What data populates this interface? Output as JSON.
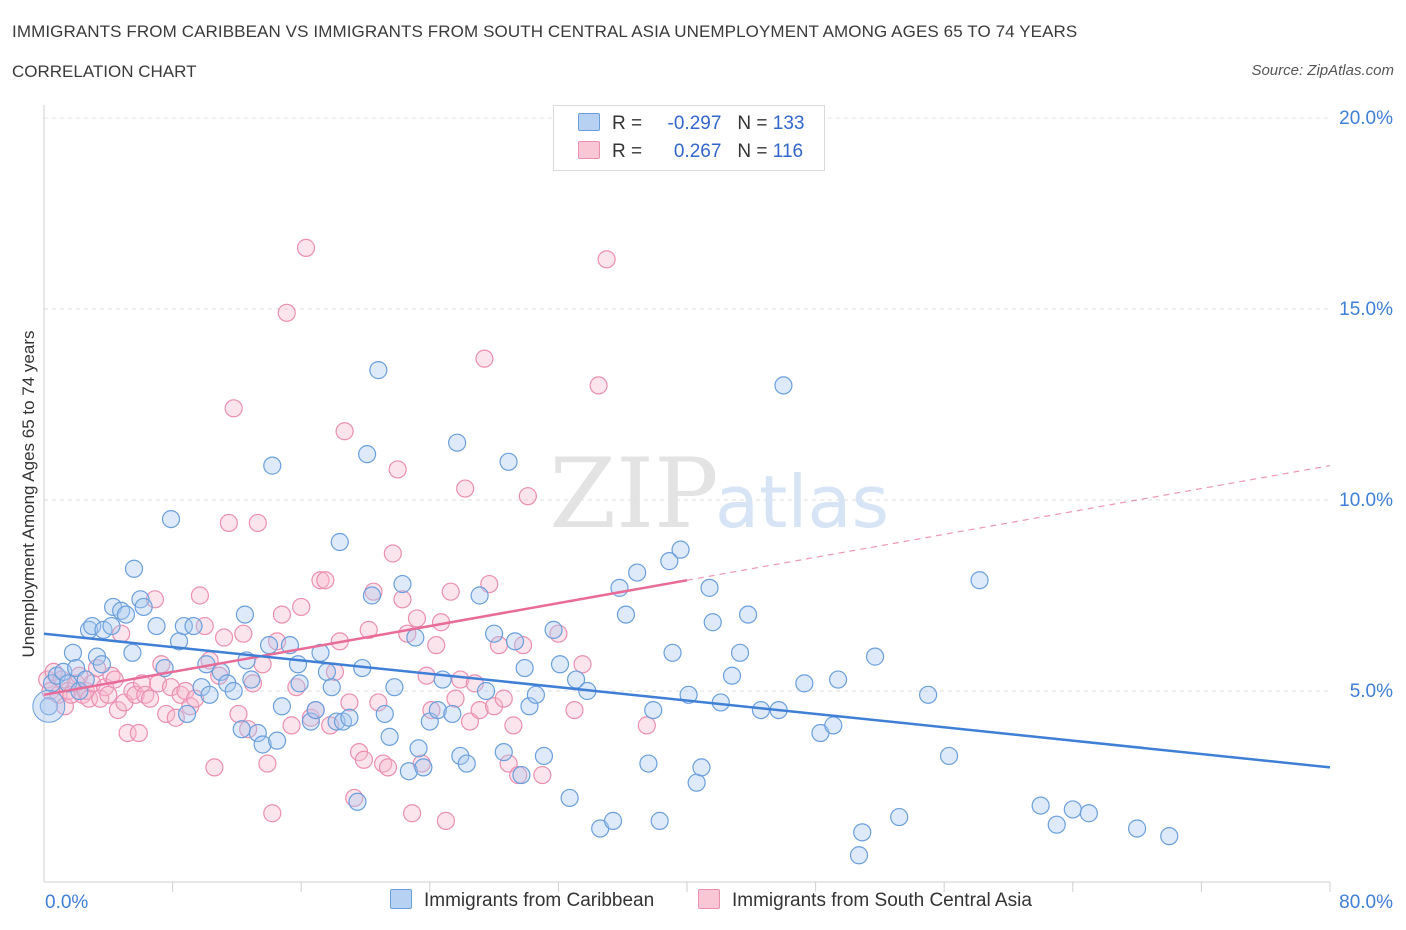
{
  "title": "IMMIGRANTS FROM CARIBBEAN VS IMMIGRANTS FROM SOUTH CENTRAL ASIA UNEMPLOYMENT AMONG AGES 65 TO 74 YEARS",
  "subtitle": "CORRELATION CHART",
  "source": "Source: ZipAtlas.com",
  "watermark": {
    "zip": "ZIP",
    "atlas": "atlas"
  },
  "stats": [
    {
      "r_label": "R =",
      "r_value": "-0.297",
      "n_label": "N =",
      "n_value": "133"
    },
    {
      "r_label": "R =",
      "r_value": "0.267",
      "n_label": "N =",
      "n_value": "116"
    }
  ],
  "legend": {
    "series1": "Immigrants from Caribbean",
    "series2": "Immigrants from South Central Asia"
  },
  "colors": {
    "series1_fill": "#a8c8f0",
    "series1_stroke": "#6b9fdc",
    "series1_line": "#3f7fd6",
    "series2_fill": "#f6b8cc",
    "series2_stroke": "#eb8fb0",
    "series2_line": "#e86b98",
    "axis_text": "#3f7fd6"
  },
  "chart_data": {
    "type": "scatter",
    "title": "IMMIGRANTS FROM CARIBBEAN VS IMMIGRANTS FROM SOUTH CENTRAL ASIA UNEMPLOYMENT AMONG AGES 65 TO 74 YEARS",
    "xlabel": "",
    "ylabel": "Unemployment Among Ages 65 to 74 years",
    "xlim": [
      0,
      80
    ],
    "ylim": [
      0,
      20
    ],
    "x_tick_labels": [
      "0.0%",
      "80.0%"
    ],
    "y_ticks": [
      5,
      10,
      15,
      20
    ],
    "y_tick_labels": [
      "5.0%",
      "10.0%",
      "15.0%",
      "20.0%"
    ],
    "series": [
      {
        "name": "Immigrants from Caribbean",
        "trend": {
          "x": [
            0,
            80
          ],
          "y": [
            6.5,
            3.0
          ]
        },
        "points": [
          [
            0.3,
            4.6
          ],
          [
            0.5,
            5.2
          ],
          [
            0.8,
            5.4
          ],
          [
            1.2,
            5.5
          ],
          [
            1.5,
            5.2
          ],
          [
            1.8,
            6.0
          ],
          [
            2.0,
            5.6
          ],
          [
            2.2,
            5.0
          ],
          [
            2.6,
            5.3
          ],
          [
            2.8,
            6.6
          ],
          [
            3.0,
            6.7
          ],
          [
            3.3,
            5.9
          ],
          [
            3.6,
            5.7
          ],
          [
            3.7,
            6.6
          ],
          [
            4.2,
            6.7
          ],
          [
            4.3,
            7.2
          ],
          [
            4.8,
            7.1
          ],
          [
            5.1,
            7.0
          ],
          [
            5.5,
            6.0
          ],
          [
            5.6,
            8.2
          ],
          [
            6.0,
            7.4
          ],
          [
            6.2,
            7.2
          ],
          [
            7.0,
            6.7
          ],
          [
            7.5,
            5.6
          ],
          [
            7.9,
            9.5
          ],
          [
            8.4,
            6.3
          ],
          [
            8.7,
            6.7
          ],
          [
            8.9,
            4.4
          ],
          [
            9.3,
            6.7
          ],
          [
            9.8,
            5.1
          ],
          [
            10.1,
            5.7
          ],
          [
            10.3,
            4.9
          ],
          [
            11.0,
            5.5
          ],
          [
            11.4,
            5.2
          ],
          [
            11.8,
            5.0
          ],
          [
            12.3,
            4.0
          ],
          [
            12.6,
            5.8
          ],
          [
            12.5,
            7.0
          ],
          [
            12.9,
            5.3
          ],
          [
            13.3,
            3.9
          ],
          [
            13.6,
            3.6
          ],
          [
            14.0,
            6.2
          ],
          [
            14.2,
            10.9
          ],
          [
            14.5,
            3.7
          ],
          [
            14.8,
            4.6
          ],
          [
            15.3,
            6.2
          ],
          [
            15.8,
            5.7
          ],
          [
            15.9,
            5.2
          ],
          [
            16.6,
            4.2
          ],
          [
            16.9,
            4.5
          ],
          [
            17.2,
            6.0
          ],
          [
            17.6,
            5.5
          ],
          [
            17.9,
            5.1
          ],
          [
            18.2,
            4.2
          ],
          [
            18.4,
            8.9
          ],
          [
            18.6,
            4.2
          ],
          [
            19.0,
            4.3
          ],
          [
            19.5,
            2.1
          ],
          [
            19.8,
            5.6
          ],
          [
            20.1,
            11.2
          ],
          [
            20.4,
            7.5
          ],
          [
            20.8,
            13.4
          ],
          [
            21.2,
            4.4
          ],
          [
            21.5,
            3.8
          ],
          [
            21.8,
            5.1
          ],
          [
            22.3,
            7.8
          ],
          [
            22.7,
            2.9
          ],
          [
            23.1,
            6.4
          ],
          [
            23.3,
            3.5
          ],
          [
            23.6,
            3.0
          ],
          [
            24.0,
            4.2
          ],
          [
            24.5,
            4.5
          ],
          [
            24.8,
            5.3
          ],
          [
            25.4,
            4.4
          ],
          [
            25.7,
            11.5
          ],
          [
            25.9,
            3.3
          ],
          [
            26.3,
            3.1
          ],
          [
            27.1,
            7.5
          ],
          [
            27.5,
            5.0
          ],
          [
            28.0,
            6.5
          ],
          [
            28.6,
            3.4
          ],
          [
            28.9,
            11.0
          ],
          [
            29.3,
            6.3
          ],
          [
            29.7,
            2.8
          ],
          [
            29.9,
            5.6
          ],
          [
            30.2,
            4.6
          ],
          [
            30.6,
            4.9
          ],
          [
            31.1,
            3.3
          ],
          [
            31.7,
            6.6
          ],
          [
            32.1,
            5.7
          ],
          [
            32.7,
            2.2
          ],
          [
            33.1,
            5.3
          ],
          [
            33.8,
            5.0
          ],
          [
            34.6,
            1.4
          ],
          [
            35.4,
            1.6
          ],
          [
            35.8,
            7.7
          ],
          [
            36.2,
            7.0
          ],
          [
            36.9,
            8.1
          ],
          [
            37.6,
            3.1
          ],
          [
            37.9,
            4.5
          ],
          [
            38.3,
            1.6
          ],
          [
            38.9,
            8.4
          ],
          [
            39.1,
            6.0
          ],
          [
            39.6,
            8.7
          ],
          [
            40.1,
            4.9
          ],
          [
            40.6,
            2.6
          ],
          [
            40.9,
            3.0
          ],
          [
            41.4,
            7.7
          ],
          [
            41.6,
            6.8
          ],
          [
            42.1,
            4.7
          ],
          [
            42.8,
            5.4
          ],
          [
            43.3,
            6.0
          ],
          [
            43.8,
            7.0
          ],
          [
            44.6,
            4.5
          ],
          [
            45.7,
            4.5
          ],
          [
            46.0,
            13.0
          ],
          [
            47.3,
            5.2
          ],
          [
            48.3,
            3.9
          ],
          [
            49.1,
            4.1
          ],
          [
            49.4,
            5.3
          ],
          [
            50.7,
            0.7
          ],
          [
            50.9,
            1.3
          ],
          [
            51.7,
            5.9
          ],
          [
            53.2,
            1.7
          ],
          [
            55.0,
            4.9
          ],
          [
            56.3,
            3.3
          ],
          [
            58.2,
            7.9
          ],
          [
            62.0,
            2.0
          ],
          [
            63.0,
            1.5
          ],
          [
            64.0,
            1.9
          ],
          [
            65.0,
            1.8
          ],
          [
            68.0,
            1.4
          ],
          [
            70.0,
            1.2
          ]
        ]
      },
      {
        "name": "Immigrants from South Central Asia",
        "trend": {
          "x": [
            0,
            40
          ],
          "y": [
            4.9,
            7.9
          ]
        },
        "trend_extended": {
          "x": [
            40,
            80
          ],
          "y": [
            7.9,
            10.9
          ]
        },
        "points": [
          [
            0.2,
            5.3
          ],
          [
            0.4,
            5.0
          ],
          [
            0.6,
            5.5
          ],
          [
            0.9,
            4.9
          ],
          [
            1.1,
            5.3
          ],
          [
            1.3,
            4.6
          ],
          [
            1.5,
            5.0
          ],
          [
            1.7,
            4.9
          ],
          [
            2.0,
            5.2
          ],
          [
            2.2,
            5.4
          ],
          [
            2.4,
            4.9
          ],
          [
            2.6,
            5.0
          ],
          [
            2.8,
            4.8
          ],
          [
            3.0,
            5.2
          ],
          [
            3.3,
            5.6
          ],
          [
            3.5,
            4.8
          ],
          [
            3.8,
            5.1
          ],
          [
            4.0,
            4.9
          ],
          [
            4.2,
            5.4
          ],
          [
            4.4,
            5.3
          ],
          [
            4.6,
            4.5
          ],
          [
            4.8,
            6.5
          ],
          [
            5.0,
            4.7
          ],
          [
            5.2,
            3.9
          ],
          [
            5.5,
            5.0
          ],
          [
            5.7,
            4.9
          ],
          [
            5.9,
            3.9
          ],
          [
            6.1,
            5.2
          ],
          [
            6.3,
            4.9
          ],
          [
            6.6,
            4.8
          ],
          [
            6.9,
            7.4
          ],
          [
            7.1,
            5.2
          ],
          [
            7.3,
            5.7
          ],
          [
            7.6,
            4.4
          ],
          [
            7.9,
            5.1
          ],
          [
            8.2,
            4.3
          ],
          [
            8.5,
            4.9
          ],
          [
            8.8,
            5.0
          ],
          [
            9.1,
            4.6
          ],
          [
            9.4,
            4.8
          ],
          [
            9.7,
            7.5
          ],
          [
            10.0,
            6.7
          ],
          [
            10.3,
            5.8
          ],
          [
            10.6,
            3.0
          ],
          [
            10.9,
            5.4
          ],
          [
            11.2,
            6.4
          ],
          [
            11.5,
            9.4
          ],
          [
            11.8,
            12.4
          ],
          [
            12.1,
            4.4
          ],
          [
            12.4,
            6.5
          ],
          [
            12.7,
            4.0
          ],
          [
            13.0,
            5.2
          ],
          [
            13.3,
            9.4
          ],
          [
            13.6,
            5.7
          ],
          [
            13.9,
            3.1
          ],
          [
            14.2,
            1.8
          ],
          [
            14.5,
            6.3
          ],
          [
            14.8,
            7.0
          ],
          [
            15.1,
            14.9
          ],
          [
            15.4,
            4.1
          ],
          [
            15.7,
            5.1
          ],
          [
            16.0,
            7.2
          ],
          [
            16.3,
            16.6
          ],
          [
            16.6,
            4.3
          ],
          [
            16.9,
            4.5
          ],
          [
            17.2,
            7.9
          ],
          [
            17.5,
            7.9
          ],
          [
            17.8,
            4.1
          ],
          [
            18.1,
            5.5
          ],
          [
            18.4,
            6.3
          ],
          [
            18.7,
            11.8
          ],
          [
            19.0,
            4.7
          ],
          [
            19.3,
            2.2
          ],
          [
            19.6,
            3.4
          ],
          [
            19.9,
            3.2
          ],
          [
            20.2,
            6.6
          ],
          [
            20.5,
            7.6
          ],
          [
            20.8,
            4.7
          ],
          [
            21.1,
            3.1
          ],
          [
            21.4,
            3.0
          ],
          [
            21.7,
            8.6
          ],
          [
            22.0,
            10.8
          ],
          [
            22.3,
            7.4
          ],
          [
            22.6,
            6.5
          ],
          [
            22.9,
            1.8
          ],
          [
            23.2,
            6.9
          ],
          [
            23.5,
            3.1
          ],
          [
            23.8,
            5.4
          ],
          [
            24.1,
            4.5
          ],
          [
            24.4,
            6.2
          ],
          [
            24.7,
            6.8
          ],
          [
            25.0,
            1.6
          ],
          [
            25.3,
            7.6
          ],
          [
            25.6,
            4.8
          ],
          [
            25.9,
            5.3
          ],
          [
            26.2,
            10.3
          ],
          [
            26.5,
            4.2
          ],
          [
            26.8,
            5.2
          ],
          [
            27.1,
            4.5
          ],
          [
            27.4,
            13.7
          ],
          [
            27.7,
            7.8
          ],
          [
            28.0,
            4.6
          ],
          [
            28.3,
            6.2
          ],
          [
            28.6,
            4.8
          ],
          [
            28.9,
            3.1
          ],
          [
            29.2,
            4.1
          ],
          [
            29.5,
            2.8
          ],
          [
            29.8,
            6.2
          ],
          [
            30.1,
            10.1
          ],
          [
            31.0,
            2.8
          ],
          [
            32.0,
            6.5
          ],
          [
            33.0,
            4.5
          ],
          [
            33.5,
            5.7
          ],
          [
            34.5,
            13.0
          ],
          [
            35.0,
            16.3
          ],
          [
            37.5,
            4.1
          ]
        ]
      }
    ]
  }
}
